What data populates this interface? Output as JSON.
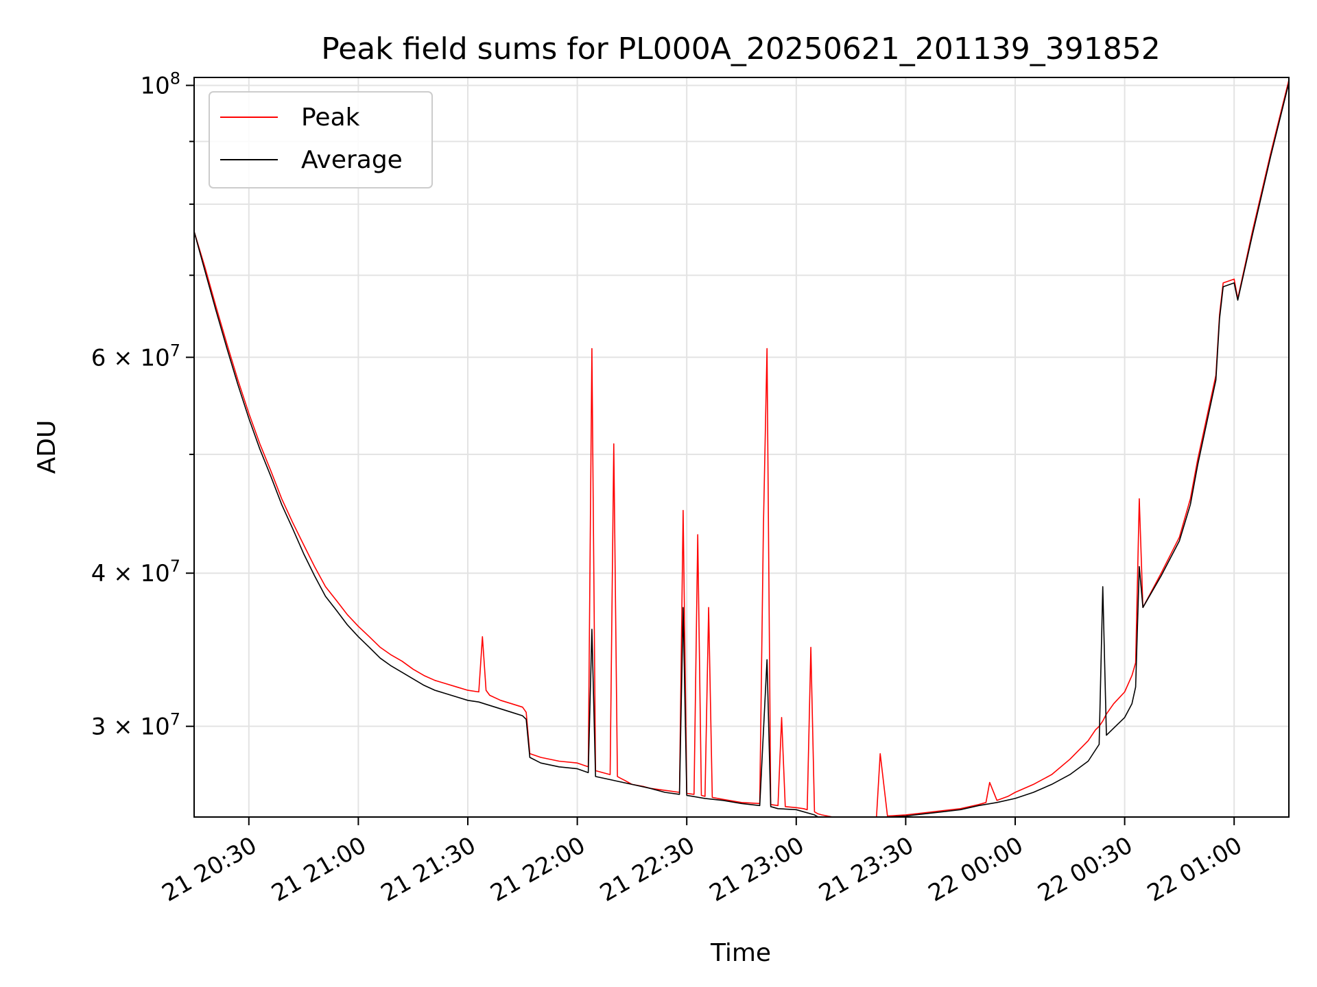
{
  "chart_data": {
    "type": "line",
    "title": "Peak field sums for PL000A_20250621_201139_391852",
    "xlabel": "Time",
    "ylabel": "ADU",
    "yscale": "log",
    "ylim": [
      25300000,
      101500000
    ],
    "xlim": [
      "21 20:15",
      "22 01:15"
    ],
    "grid": true,
    "legend_position": "top-left",
    "x_ticks": [
      "21 20:30",
      "21 21:00",
      "21 21:30",
      "21 22:00",
      "21 22:30",
      "21 23:00",
      "21 23:30",
      "22 00:00",
      "22 00:30",
      "22 01:00"
    ],
    "y_ticks_major": [
      {
        "value": 100000000,
        "base": "10",
        "exp": "8",
        "mant": ""
      },
      {
        "value": 60000000,
        "mant": "6",
        "base": "10",
        "exp": "7"
      },
      {
        "value": 40000000,
        "mant": "4",
        "base": "10",
        "exp": "7"
      },
      {
        "value": 30000000,
        "mant": "3",
        "base": "10",
        "exp": "7"
      }
    ],
    "y_ticks_minor": [
      90000000,
      80000000,
      70000000,
      50000000
    ],
    "series": [
      {
        "name": "Peak",
        "color": "#ff0000",
        "x": [
          "21 20:15",
          "21 20:18",
          "21 20:21",
          "21 20:24",
          "21 20:27",
          "21 20:30",
          "21 20:33",
          "21 20:36",
          "21 20:39",
          "21 20:42",
          "21 20:45",
          "21 20:48",
          "21 20:51",
          "21 20:54",
          "21 20:57",
          "21 21:00",
          "21 21:03",
          "21 21:06",
          "21 21:09",
          "21 21:12",
          "21 21:15",
          "21 21:18",
          "21 21:21",
          "21 21:24",
          "21 21:27",
          "21 21:30",
          "21 21:33",
          "21 21:34",
          "21 21:35",
          "21 21:36",
          "21 21:39",
          "21 21:42",
          "21 21:45",
          "21 21:46",
          "21 21:47",
          "21 21:50",
          "21 21:55",
          "21 22:00",
          "21 22:03",
          "21 22:04",
          "21 22:05",
          "21 22:09",
          "21 22:10",
          "21 22:11",
          "21 22:12",
          "21 22:13",
          "21 22:14",
          "21 22:15",
          "21 22:18",
          "21 22:20",
          "21 22:24",
          "21 22:28",
          "21 22:29",
          "21 22:30",
          "21 22:32",
          "21 22:33",
          "21 22:34",
          "21 22:35",
          "21 22:36",
          "21 22:37",
          "21 22:40",
          "21 22:45",
          "21 22:50",
          "21 22:51",
          "21 22:52",
          "21 22:53",
          "21 22:55",
          "21 22:56",
          "21 22:57",
          "21 23:00",
          "21 23:02",
          "21 23:03",
          "21 23:04",
          "21 23:05",
          "21 23:06",
          "21 23:07",
          "21 23:10",
          "21 23:15",
          "21 23:20",
          "21 23:22",
          "21 23:23",
          "21 23:25",
          "21 23:30",
          "21 23:35",
          "21 23:40",
          "21 23:45",
          "21 23:50",
          "21 23:52",
          "21 23:53",
          "21 23:55",
          "21 23:58",
          "22 00:00",
          "22 00:05",
          "22 00:10",
          "22 00:15",
          "22 00:20",
          "22 00:22",
          "22 00:23",
          "22 00:24",
          "22 00:25",
          "22 00:27",
          "22 00:30",
          "22 00:32",
          "22 00:33",
          "22 00:34",
          "22 00:35",
          "22 00:40",
          "22 00:45",
          "22 00:48",
          "22 00:50",
          "22 00:55",
          "22 00:56",
          "22 00:57",
          "22 01:00",
          "22 01:01",
          "22 01:05",
          "22 01:10",
          "22 01:15"
        ],
        "y": [
          76000000,
          71000000,
          66000000,
          61500000,
          57500000,
          54000000,
          51000000,
          48500000,
          46000000,
          44000000,
          42200000,
          40500000,
          39000000,
          38000000,
          37000000,
          36200000,
          35500000,
          34800000,
          34300000,
          33900000,
          33400000,
          33000000,
          32700000,
          32500000,
          32300000,
          32100000,
          32000000,
          35500000,
          32100000,
          31800000,
          31500000,
          31300000,
          31100000,
          30800000,
          28500000,
          28300000,
          28100000,
          28000000,
          27800000,
          61000000,
          27600000,
          27400000,
          51000000,
          27300000,
          27200000,
          27100000,
          27000000,
          26900000,
          26800000,
          26700000,
          26600000,
          26500000,
          45000000,
          26450000,
          26400000,
          43000000,
          26350000,
          26300000,
          37500000,
          26250000,
          26150000,
          26000000,
          25950000,
          43500000,
          61000000,
          25900000,
          25850000,
          30500000,
          25800000,
          25750000,
          25700000,
          25650000,
          34800000,
          25550000,
          25450000,
          25400000,
          25300000,
          25300000,
          25300000,
          25300000,
          28500000,
          25350000,
          25400000,
          25500000,
          25600000,
          25700000,
          25900000,
          26000000,
          27000000,
          26100000,
          26300000,
          26500000,
          26900000,
          27400000,
          28200000,
          29200000,
          29800000,
          30000000,
          30300000,
          30700000,
          31300000,
          32000000,
          33000000,
          33800000,
          46000000,
          37500000,
          40000000,
          42800000,
          46000000,
          49500000,
          58000000,
          65000000,
          69000000,
          69500000,
          67000000,
          76000000,
          88000000,
          101000000
        ]
      },
      {
        "name": "Average",
        "color": "#000000",
        "x": [
          "21 20:15",
          "21 20:18",
          "21 20:21",
          "21 20:24",
          "21 20:27",
          "21 20:30",
          "21 20:33",
          "21 20:36",
          "21 20:39",
          "21 20:42",
          "21 20:45",
          "21 20:48",
          "21 20:51",
          "21 20:54",
          "21 20:57",
          "21 21:00",
          "21 21:03",
          "21 21:06",
          "21 21:09",
          "21 21:12",
          "21 21:15",
          "21 21:18",
          "21 21:21",
          "21 21:24",
          "21 21:27",
          "21 21:30",
          "21 21:33",
          "21 21:36",
          "21 21:39",
          "21 21:42",
          "21 21:45",
          "21 21:46",
          "21 21:47",
          "21 21:50",
          "21 21:55",
          "21 22:00",
          "21 22:03",
          "21 22:04",
          "21 22:05",
          "21 22:10",
          "21 22:15",
          "21 22:20",
          "21 22:24",
          "21 22:28",
          "21 22:29",
          "21 22:30",
          "21 22:35",
          "21 22:40",
          "21 22:45",
          "21 22:50",
          "21 22:52",
          "21 22:53",
          "21 22:55",
          "21 23:00",
          "21 23:05",
          "21 23:06",
          "21 23:07",
          "21 23:10",
          "21 23:15",
          "21 23:20",
          "21 23:25",
          "21 23:30",
          "21 23:35",
          "21 23:40",
          "21 23:45",
          "21 23:50",
          "21 23:55",
          "22 00:00",
          "22 00:05",
          "22 00:10",
          "22 00:15",
          "22 00:20",
          "22 00:23",
          "22 00:24",
          "22 00:25",
          "22 00:27",
          "22 00:30",
          "22 00:32",
          "22 00:33",
          "22 00:34",
          "22 00:35",
          "22 00:40",
          "22 00:45",
          "22 00:48",
          "22 00:50",
          "22 00:55",
          "22 00:56",
          "22 00:57",
          "22 01:00",
          "22 01:01",
          "22 01:05",
          "22 01:10",
          "22 01:15"
        ],
        "y": [
          76000000,
          70500000,
          65500000,
          61000000,
          57000000,
          53500000,
          50500000,
          48000000,
          45500000,
          43500000,
          41500000,
          39800000,
          38300000,
          37300000,
          36300000,
          35500000,
          34800000,
          34100000,
          33600000,
          33200000,
          32800000,
          32400000,
          32100000,
          31900000,
          31700000,
          31500000,
          31400000,
          31200000,
          31000000,
          30800000,
          30600000,
          30400000,
          28300000,
          28000000,
          27800000,
          27700000,
          27500000,
          36000000,
          27300000,
          27100000,
          26900000,
          26700000,
          26500000,
          26400000,
          37500000,
          26350000,
          26200000,
          26100000,
          25950000,
          25850000,
          34000000,
          25800000,
          25700000,
          25650000,
          25400000,
          25300000,
          25300000,
          25250000,
          25250000,
          25250000,
          25300000,
          25350000,
          25450000,
          25550000,
          25650000,
          25850000,
          26000000,
          26200000,
          26500000,
          26900000,
          27400000,
          28100000,
          29000000,
          39000000,
          29500000,
          29900000,
          30500000,
          31300000,
          32300000,
          40500000,
          37500000,
          39800000,
          42500000,
          45500000,
          49000000,
          57500000,
          64500000,
          68500000,
          69000000,
          66800000,
          75500000,
          87500000,
          100500000
        ]
      }
    ]
  }
}
